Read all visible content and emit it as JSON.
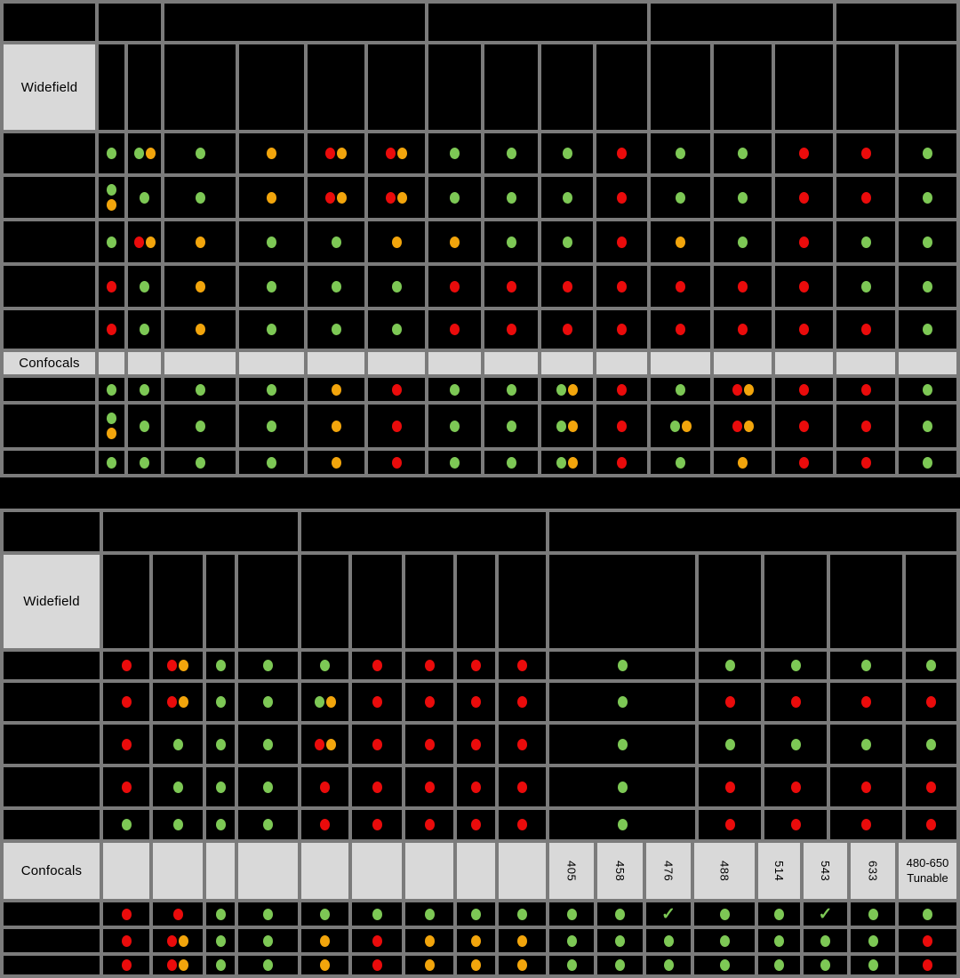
{
  "colors": {
    "green": "#7DC855",
    "orange": "#F2A50C",
    "red": "#EA0B0B",
    "grid": "#7B7B7B",
    "label_bg": "#D9D9D9",
    "background": "#000000"
  },
  "labels": {
    "widefield": "Widefield",
    "confocals": "Confocals"
  },
  "dot_codes": {
    "g": "green dot",
    "o": "orange dot",
    "r": "red dot",
    "go": "green + orange pair",
    "ro": "red + orange pair",
    "g+o": "green stacked above orange",
    "check": "green checkmark"
  },
  "chart_data": {
    "type": "table",
    "top_table": {
      "header_group_count": 6,
      "widefield_rows": [
        [
          "g",
          "go",
          "g",
          "o",
          "ro",
          "ro",
          "g",
          "g",
          "g",
          "r",
          "g",
          "g",
          "r",
          "r",
          "g"
        ],
        [
          "g+o",
          "g",
          "g",
          "o",
          "ro",
          "ro",
          "g",
          "g",
          "g",
          "r",
          "g",
          "g",
          "r",
          "r",
          "g"
        ],
        [
          "g",
          "ro",
          "o",
          "g",
          "g",
          "o",
          "o",
          "g",
          "g",
          "r",
          "o",
          "g",
          "r",
          "g",
          "g"
        ],
        [
          "r",
          "g",
          "o",
          "g",
          "g",
          "g",
          "r",
          "r",
          "r",
          "r",
          "r",
          "r",
          "r",
          "g",
          "g"
        ],
        [
          "r",
          "g",
          "o",
          "g",
          "g",
          "g",
          "r",
          "r",
          "r",
          "r",
          "r",
          "r",
          "r",
          "r",
          "g"
        ]
      ],
      "confocal_rows": [
        [
          "g",
          "g",
          "g",
          "g",
          "o",
          "r",
          "g",
          "g",
          "go",
          "r",
          "g",
          "ro",
          "r",
          "r",
          "g"
        ],
        [
          "g+o",
          "g",
          "g",
          "g",
          "o",
          "r",
          "g",
          "g",
          "go",
          "r",
          "go",
          "ro",
          "r",
          "r",
          "g"
        ],
        [
          "g",
          "g",
          "g",
          "g",
          "o",
          "r",
          "g",
          "g",
          "go",
          "r",
          "g",
          "o",
          "r",
          "r",
          "g"
        ]
      ]
    },
    "bottom_table": {
      "header_group_count": 4,
      "widefield_rows": [
        [
          "r",
          "ro",
          "g",
          "g",
          "g",
          "r",
          "r",
          "r",
          "r",
          "g",
          "g",
          "g",
          "g",
          "g"
        ],
        [
          "r",
          "ro",
          "g",
          "g",
          "go",
          "r",
          "r",
          "r",
          "r",
          "g",
          "r",
          "r",
          "r",
          "r"
        ],
        [
          "r",
          "g",
          "g",
          "g",
          "ro",
          "r",
          "r",
          "r",
          "r",
          "g",
          "g",
          "g",
          "g",
          "g"
        ],
        [
          "r",
          "g",
          "g",
          "g",
          "r",
          "r",
          "r",
          "r",
          "r",
          "g",
          "r",
          "r",
          "r",
          "r"
        ],
        [
          "g",
          "g",
          "g",
          "g",
          "r",
          "r",
          "r",
          "r",
          "r",
          "g",
          "r",
          "r",
          "r",
          "r"
        ]
      ],
      "laser_wavelengths": [
        "405",
        "458",
        "476",
        "488",
        "514",
        "543",
        "633"
      ],
      "tunable_label": "480-650 Tunable",
      "confocal_rows": [
        [
          "r",
          "r",
          "g",
          "g",
          "g",
          "g",
          "g",
          "g",
          "g",
          "g",
          "g",
          "check",
          "g",
          "g",
          "check",
          "g",
          "g"
        ],
        [
          "r",
          "ro",
          "g",
          "g",
          "o",
          "r",
          "o",
          "o",
          "o",
          "g",
          "g",
          "g",
          "g",
          "g",
          "g",
          "g",
          "r"
        ],
        [
          "r",
          "ro",
          "g",
          "g",
          "o",
          "r",
          "o",
          "o",
          "o",
          "g",
          "g",
          "g",
          "g",
          "g",
          "g",
          "g",
          "r"
        ]
      ]
    }
  }
}
